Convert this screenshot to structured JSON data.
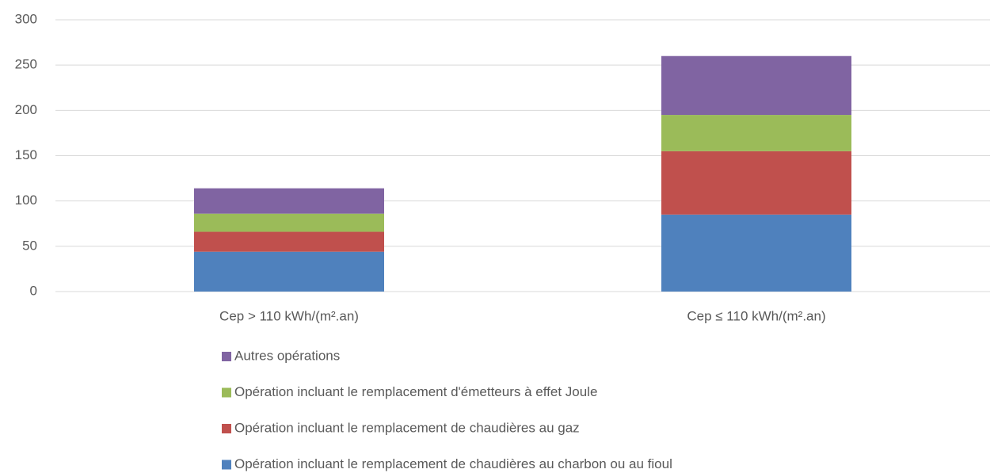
{
  "chart_data": {
    "type": "stacked-bar",
    "categories": [
      "Cep > 110 kWh/(m².an)",
      "Cep ≤ 110 kWh/(m².an)"
    ],
    "series": [
      {
        "name": "Opération incluant le remplacement de chaudières au charbon ou au fioul",
        "color": "#4f81bd",
        "values": [
          44,
          85
        ]
      },
      {
        "name": "Opération incluant le remplacement de chaudières au gaz",
        "color": "#c0504d",
        "values": [
          22,
          70
        ]
      },
      {
        "name": "Opération incluant le remplacement d'émetteurs à effet Joule",
        "color": "#9bbb59",
        "values": [
          20,
          40
        ]
      },
      {
        "name": "Autres opérations",
        "color": "#8064a2",
        "values": [
          28,
          65
        ]
      }
    ],
    "ylim": [
      0,
      300
    ],
    "yticks": [
      0,
      50,
      100,
      150,
      200,
      250,
      300
    ],
    "grid": true
  }
}
